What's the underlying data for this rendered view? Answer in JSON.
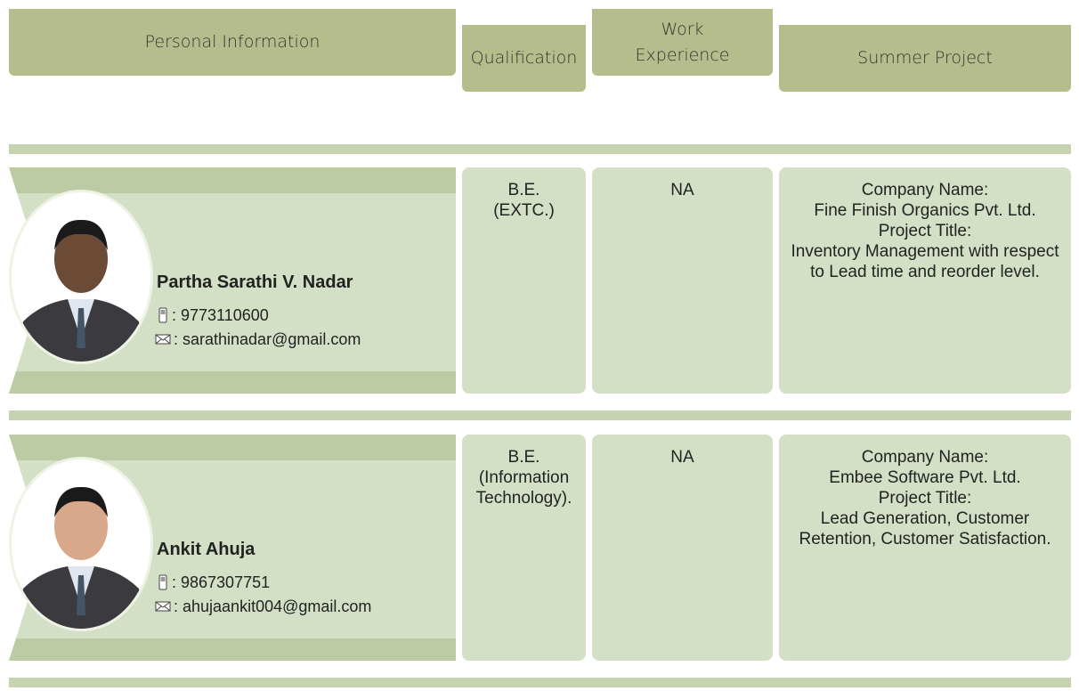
{
  "header": {
    "columns": [
      "Personal Information",
      "Qualification",
      "Work Experience",
      "Summer Project"
    ]
  },
  "profiles": [
    {
      "name": "Partha Sarathi V. Nadar",
      "phone": ": 9773110600",
      "email": ": sarathinadar@gmail.com",
      "qualification": [
        "B.E.",
        "(EXTC.)"
      ],
      "work_experience": "NA",
      "company_label": "Company Name:",
      "company": "Fine Finish Organics Pvt. Ltd.",
      "project_label": "Project Title:",
      "project": "Inventory Management with respect to Lead time and reorder level."
    },
    {
      "name": "Ankit Ahuja",
      "phone": ": 9867307751",
      "email": ": ahujaankit004@gmail.com",
      "qualification": [
        "B.E.",
        "(Information",
        "Technology)."
      ],
      "work_experience": "NA",
      "company_label": "Company Name:",
      "company": "Embee Software Pvt. Ltd.",
      "project_label": "Project Title:",
      "project": "Lead Generation, Customer Retention, Customer Satisfaction."
    }
  ]
}
